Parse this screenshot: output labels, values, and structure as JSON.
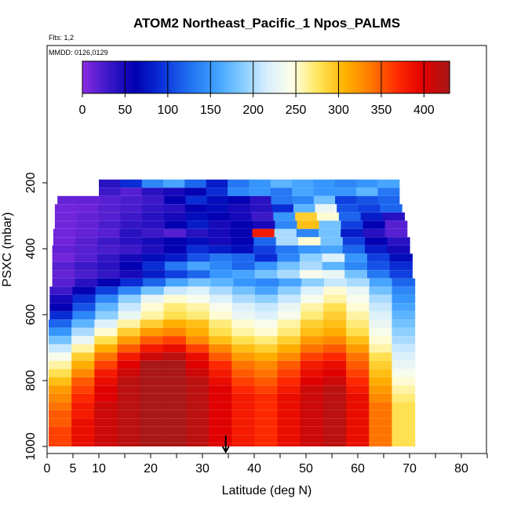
{
  "chart_data": {
    "type": "heatmap",
    "title": "ATOM2 Northeast_Pacific_1 Npos_PALMS",
    "annotations": [
      "Flts: 1,2",
      "MMDD: 0126,0129"
    ],
    "xlabel": "Latitude (deg N)",
    "ylabel": "PSXC (mbar)",
    "xlim": [
      0,
      85
    ],
    "ylim": [
      1000,
      0
    ],
    "x_ticks": [
      0,
      5,
      10,
      20,
      30,
      40,
      50,
      60,
      70,
      80
    ],
    "x_minor_ticks": [
      15,
      25,
      35,
      45,
      55,
      65,
      75,
      85
    ],
    "y_ticks": [
      200,
      400,
      600,
      800,
      1000
    ],
    "colorbar": {
      "ticks": [
        0,
        50,
        100,
        150,
        200,
        250,
        300,
        350,
        400
      ],
      "range": [
        0,
        430
      ],
      "colors": [
        "#8B2BE2",
        "#3A18C8",
        "#0000B0",
        "#0A2FD8",
        "#1E6CF0",
        "#3A9CFF",
        "#7CC8FF",
        "#D6EEFF",
        "#FFFFE8",
        "#FFE65A",
        "#FFB300",
        "#FF7A00",
        "#FF2A00",
        "#E00000",
        "#A81818"
      ]
    },
    "marker_latitude": 34.5,
    "grid": false,
    "layers": [
      {
        "p_top": 190,
        "p_bot": 215,
        "x_start": 10,
        "x_end": 68,
        "values": [
          40,
          90,
          140,
          160,
          120,
          80,
          130,
          150,
          170,
          160,
          150,
          140,
          150,
          160
        ]
      },
      {
        "p_top": 215,
        "p_bot": 240,
        "x_start": 10,
        "x_end": 68,
        "values": [
          30,
          20,
          40,
          50,
          60,
          90,
          140,
          150,
          130,
          160,
          150,
          150,
          170,
          130
        ]
      },
      {
        "p_top": 240,
        "p_bot": 265,
        "x_start": 2,
        "x_end": 68,
        "values": [
          15,
          15,
          20,
          25,
          30,
          60,
          90,
          70,
          60,
          40,
          130,
          140,
          180,
          100,
          110,
          120
        ]
      },
      {
        "p_top": 265,
        "p_bot": 290,
        "x_start": 1.5,
        "x_end": 68.5,
        "values": [
          10,
          12,
          20,
          25,
          35,
          40,
          60,
          70,
          50,
          40,
          90,
          170,
          230,
          110,
          100,
          120
        ]
      },
      {
        "p_top": 290,
        "p_bot": 315,
        "x_start": 1.5,
        "x_end": 69,
        "values": [
          10,
          15,
          20,
          30,
          40,
          50,
          70,
          60,
          50,
          30,
          150,
          290,
          250,
          120,
          80,
          40
        ]
      },
      {
        "p_top": 315,
        "p_bot": 340,
        "x_start": 1.5,
        "x_end": 69.5,
        "values": [
          10,
          15,
          25,
          35,
          40,
          60,
          80,
          50,
          60,
          50,
          140,
          300,
          180,
          100,
          60,
          20
        ]
      },
      {
        "p_top": 340,
        "p_bot": 365,
        "x_start": 1.2,
        "x_end": 69.5,
        "values": [
          10,
          15,
          20,
          40,
          30,
          20,
          40,
          50,
          60,
          380,
          200,
          140,
          180,
          80,
          40,
          20
        ]
      },
      {
        "p_top": 365,
        "p_bot": 390,
        "x_start": 1.2,
        "x_end": 70,
        "values": [
          10,
          20,
          30,
          40,
          50,
          60,
          70,
          50,
          60,
          120,
          200,
          250,
          180,
          100,
          60,
          40
        ]
      },
      {
        "p_top": 390,
        "p_bot": 415,
        "x_start": 1,
        "x_end": 70,
        "values": [
          15,
          20,
          25,
          30,
          45,
          60,
          90,
          80,
          70,
          100,
          130,
          150,
          160,
          120,
          80,
          50
        ]
      },
      {
        "p_top": 415,
        "p_bot": 440,
        "x_start": 1,
        "x_end": 70.5,
        "values": [
          10,
          20,
          35,
          50,
          70,
          80,
          110,
          130,
          120,
          90,
          140,
          190,
          220,
          150,
          100,
          70
        ]
      },
      {
        "p_top": 440,
        "p_bot": 465,
        "x_start": 1,
        "x_end": 70.5,
        "values": [
          20,
          30,
          40,
          60,
          90,
          130,
          160,
          140,
          120,
          150,
          180,
          200,
          170,
          140,
          110,
          90
        ]
      },
      {
        "p_top": 465,
        "p_bot": 490,
        "x_start": 1,
        "x_end": 70.5,
        "values": [
          15,
          25,
          35,
          50,
          80,
          100,
          120,
          150,
          160,
          180,
          200,
          240,
          230,
          180,
          130,
          100
        ]
      },
      {
        "p_top": 490,
        "p_bot": 515,
        "x_start": 1,
        "x_end": 71,
        "values": [
          20,
          40,
          60,
          90,
          120,
          160,
          180,
          170,
          150,
          140,
          160,
          190,
          210,
          200,
          160,
          120
        ]
      },
      {
        "p_top": 515,
        "p_bot": 540,
        "x_start": 0.5,
        "x_end": 71,
        "values": [
          30,
          60,
          100,
          140,
          180,
          210,
          220,
          200,
          180,
          160,
          190,
          220,
          250,
          230,
          180,
          140
        ]
      },
      {
        "p_top": 540,
        "p_bot": 565,
        "x_start": 0.5,
        "x_end": 71,
        "values": [
          50,
          90,
          140,
          190,
          230,
          250,
          240,
          220,
          200,
          190,
          210,
          240,
          260,
          240,
          200,
          150
        ]
      },
      {
        "p_top": 565,
        "p_bot": 590,
        "x_start": 0.5,
        "x_end": 71,
        "values": [
          60,
          110,
          170,
          210,
          250,
          270,
          260,
          240,
          220,
          210,
          230,
          260,
          280,
          250,
          210,
          160
        ]
      },
      {
        "p_top": 590,
        "p_bot": 615,
        "x_start": 0.5,
        "x_end": 71,
        "values": [
          90,
          140,
          190,
          230,
          260,
          280,
          270,
          250,
          230,
          220,
          240,
          270,
          290,
          260,
          220,
          170
        ]
      },
      {
        "p_top": 615,
        "p_bot": 640,
        "x_start": 0.3,
        "x_end": 71,
        "values": [
          120,
          170,
          220,
          260,
          290,
          310,
          300,
          270,
          250,
          240,
          260,
          290,
          300,
          270,
          230,
          180
        ]
      },
      {
        "p_top": 640,
        "p_bot": 665,
        "x_start": 0.3,
        "x_end": 71,
        "values": [
          150,
          200,
          250,
          290,
          320,
          330,
          310,
          280,
          260,
          250,
          270,
          300,
          310,
          280,
          240,
          190
        ]
      },
      {
        "p_top": 665,
        "p_bot": 690,
        "x_start": 0.3,
        "x_end": 71,
        "values": [
          180,
          230,
          280,
          320,
          350,
          360,
          330,
          300,
          280,
          270,
          290,
          320,
          330,
          300,
          250,
          200
        ]
      },
      {
        "p_top": 690,
        "p_bot": 715,
        "x_start": 0.3,
        "x_end": 71,
        "values": [
          210,
          260,
          310,
          350,
          380,
          390,
          360,
          330,
          300,
          290,
          310,
          340,
          350,
          320,
          260,
          210
        ]
      },
      {
        "p_top": 715,
        "p_bot": 740,
        "x_start": 0.3,
        "x_end": 71,
        "values": [
          240,
          290,
          340,
          380,
          410,
          420,
          390,
          350,
          320,
          310,
          330,
          360,
          370,
          340,
          280,
          220
        ]
      },
      {
        "p_top": 740,
        "p_bot": 765,
        "x_start": 0.3,
        "x_end": 71,
        "values": [
          260,
          310,
          360,
          400,
          430,
          430,
          400,
          370,
          340,
          330,
          350,
          380,
          390,
          350,
          290,
          230
        ]
      },
      {
        "p_top": 765,
        "p_bot": 790,
        "x_start": 0.3,
        "x_end": 71,
        "values": [
          280,
          330,
          380,
          410,
          430,
          430,
          410,
          380,
          350,
          340,
          360,
          390,
          400,
          360,
          300,
          240
        ]
      },
      {
        "p_top": 790,
        "p_bot": 815,
        "x_start": 0.3,
        "x_end": 71,
        "values": [
          300,
          350,
          390,
          420,
          430,
          430,
          420,
          390,
          360,
          350,
          370,
          400,
          410,
          370,
          310,
          250
        ]
      },
      {
        "p_top": 815,
        "p_bot": 840,
        "x_start": 0.3,
        "x_end": 71,
        "values": [
          320,
          360,
          400,
          420,
          430,
          430,
          420,
          400,
          370,
          360,
          380,
          410,
          420,
          380,
          320,
          260
        ]
      },
      {
        "p_top": 840,
        "p_bot": 865,
        "x_start": 0.3,
        "x_end": 71,
        "values": [
          330,
          370,
          400,
          420,
          430,
          430,
          420,
          400,
          380,
          370,
          390,
          410,
          420,
          390,
          330,
          270
        ]
      },
      {
        "p_top": 865,
        "p_bot": 890,
        "x_start": 0.3,
        "x_end": 71,
        "values": [
          340,
          380,
          410,
          420,
          430,
          430,
          420,
          400,
          380,
          370,
          390,
          410,
          420,
          390,
          340,
          280
        ]
      },
      {
        "p_top": 890,
        "p_bot": 915,
        "x_start": 0.3,
        "x_end": 71,
        "values": [
          350,
          380,
          410,
          420,
          430,
          430,
          420,
          400,
          380,
          370,
          390,
          410,
          420,
          390,
          340,
          280
        ]
      },
      {
        "p_top": 915,
        "p_bot": 940,
        "x_start": 0.3,
        "x_end": 71,
        "values": [
          350,
          390,
          410,
          420,
          430,
          430,
          420,
          400,
          380,
          370,
          390,
          410,
          420,
          390,
          340,
          280
        ]
      },
      {
        "p_top": 940,
        "p_bot": 965,
        "x_start": 0.3,
        "x_end": 71,
        "values": [
          360,
          390,
          410,
          420,
          430,
          430,
          420,
          400,
          380,
          370,
          390,
          410,
          420,
          390,
          340,
          280
        ]
      },
      {
        "p_top": 965,
        "p_bot": 990,
        "x_start": 0.3,
        "x_end": 71,
        "values": [
          360,
          390,
          410,
          420,
          430,
          430,
          420,
          400,
          380,
          370,
          390,
          410,
          420,
          390,
          340,
          280
        ]
      },
      {
        "p_top": 990,
        "p_bot": 1000,
        "x_start": 0.3,
        "x_end": 71,
        "values": [
          360,
          390,
          410,
          420,
          430,
          430,
          420,
          400,
          380,
          370,
          390,
          410,
          420,
          390,
          340,
          280
        ]
      }
    ]
  }
}
